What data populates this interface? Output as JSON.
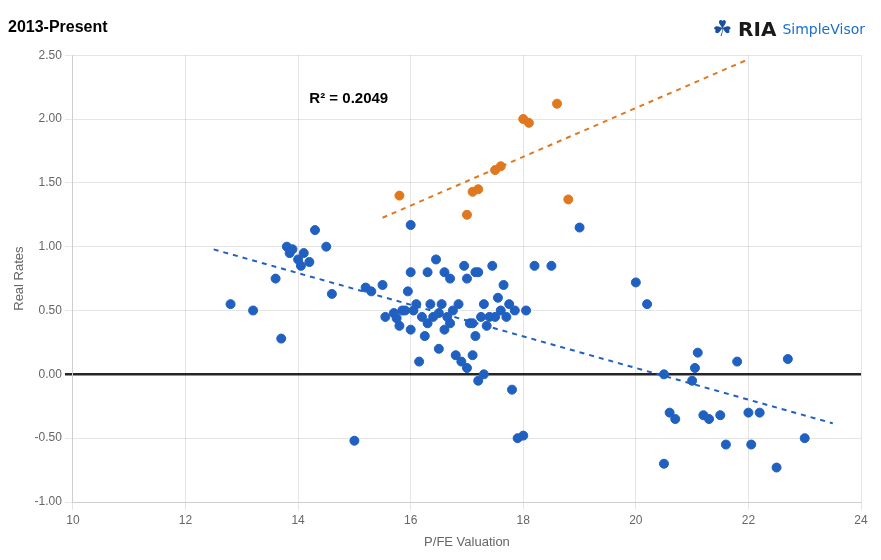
{
  "chart_data": {
    "type": "scatter",
    "title": "2013-Present",
    "xlabel": "P/FE Valuation",
    "ylabel": "Real Rates",
    "annotations": [
      {
        "text": "R² = 0.2049"
      },
      {
        "text": "☘",
        "color": "#1a4fa0"
      },
      {
        "text": "RIA",
        "color": "#1a1a1a"
      },
      {
        "text": "SimpleVisor",
        "color": "#1a6fcc"
      }
    ],
    "xlim": [
      10,
      24
    ],
    "ylim": [
      -1.0,
      2.5
    ],
    "xticks": [
      10,
      12,
      14,
      16,
      18,
      20,
      22,
      24
    ],
    "yticks": [
      {
        "value": -1.0,
        "label": "-1.00"
      },
      {
        "value": -0.5,
        "label": "-0.50"
      },
      {
        "value": 0.0,
        "label": "0.00"
      },
      {
        "value": 0.5,
        "label": "0.50"
      },
      {
        "value": 1.0,
        "label": "1.00"
      },
      {
        "value": 1.5,
        "label": "1.50"
      },
      {
        "value": 2.0,
        "label": "2.00"
      },
      {
        "value": 2.5,
        "label": "2.50"
      }
    ],
    "grid": true,
    "series": [
      {
        "type": "scatter",
        "marker": "circle",
        "color": "#2060C0",
        "x": [
          12.8,
          13.2,
          13.6,
          13.7,
          13.8,
          13.85,
          13.9,
          14.0,
          14.05,
          14.1,
          14.2,
          14.3,
          14.5,
          14.6,
          15.0,
          15.2,
          15.3,
          15.5,
          15.55,
          15.7,
          15.75,
          15.8,
          15.85,
          15.9,
          15.95,
          16.0,
          16.05,
          16.0,
          16.1,
          16.15,
          16.2,
          16.25,
          16.3,
          16.35,
          16.3,
          16.4,
          16.45,
          16.5,
          16.5,
          16.55,
          16.6,
          16.65,
          16.6,
          16.7,
          16.75,
          16.7,
          16.8,
          16.85,
          16.9,
          16.95,
          17.0,
          17.05,
          17.0,
          17.1,
          17.15,
          17.1,
          17.15,
          17.2,
          17.25,
          17.2,
          17.3,
          17.35,
          17.3,
          17.4,
          17.45,
          17.5,
          17.55,
          17.6,
          17.65,
          17.7,
          17.75,
          17.8,
          17.85,
          17.9,
          18.0,
          18.05,
          18.2,
          18.5,
          19.0,
          20.0,
          20.2,
          20.5,
          20.6,
          20.7,
          21.0,
          21.05,
          21.1,
          21.2,
          21.3,
          21.5,
          21.6,
          21.8,
          22.0,
          22.05,
          22.2,
          22.5,
          22.7,
          23.0,
          20.5,
          16.0
        ],
        "values": [
          0.55,
          0.5,
          0.75,
          0.28,
          1.0,
          0.95,
          0.98,
          0.9,
          0.85,
          0.95,
          0.88,
          1.13,
          1.0,
          0.63,
          -0.52,
          0.68,
          0.65,
          0.7,
          0.45,
          0.48,
          0.44,
          0.38,
          0.5,
          0.5,
          0.65,
          0.35,
          0.5,
          0.8,
          0.55,
          0.1,
          0.45,
          0.3,
          0.4,
          0.55,
          0.8,
          0.45,
          0.9,
          0.2,
          0.48,
          0.55,
          0.35,
          0.45,
          0.8,
          0.4,
          0.5,
          0.75,
          0.15,
          0.55,
          0.1,
          0.85,
          0.05,
          0.4,
          0.75,
          0.15,
          0.3,
          0.4,
          0.8,
          -0.05,
          0.45,
          0.8,
          0.0,
          0.38,
          0.55,
          0.45,
          0.85,
          0.45,
          0.6,
          0.5,
          0.7,
          0.45,
          0.55,
          -0.12,
          0.5,
          -0.5,
          -0.48,
          0.5,
          0.85,
          0.85,
          1.15,
          0.72,
          0.55,
          0.0,
          -0.3,
          -0.35,
          -0.05,
          0.05,
          0.17,
          -0.32,
          -0.35,
          -0.32,
          -0.55,
          0.1,
          -0.3,
          -0.55,
          -0.3,
          -0.73,
          0.12,
          -0.5,
          -0.7,
          1.17
        ]
      },
      {
        "type": "scatter",
        "marker": "circle",
        "color": "#E07820",
        "x": [
          15.8,
          17.0,
          17.1,
          17.2,
          17.5,
          17.6,
          18.0,
          18.1,
          18.6,
          18.8
        ],
        "values": [
          1.4,
          1.25,
          1.43,
          1.45,
          1.6,
          1.63,
          2.0,
          1.97,
          2.12,
          1.37
        ]
      },
      {
        "type": "line",
        "line_style": "dashed",
        "color": "#2060C0",
        "x": [
          12.5,
          23.5
        ],
        "values": [
          0.9788,
          -0.384
        ]
      },
      {
        "type": "line",
        "line_style": "dashed",
        "color": "#E07820",
        "x": [
          15.5,
          22.0
        ],
        "values": [
          1.2266,
          2.4682
        ]
      }
    ]
  }
}
